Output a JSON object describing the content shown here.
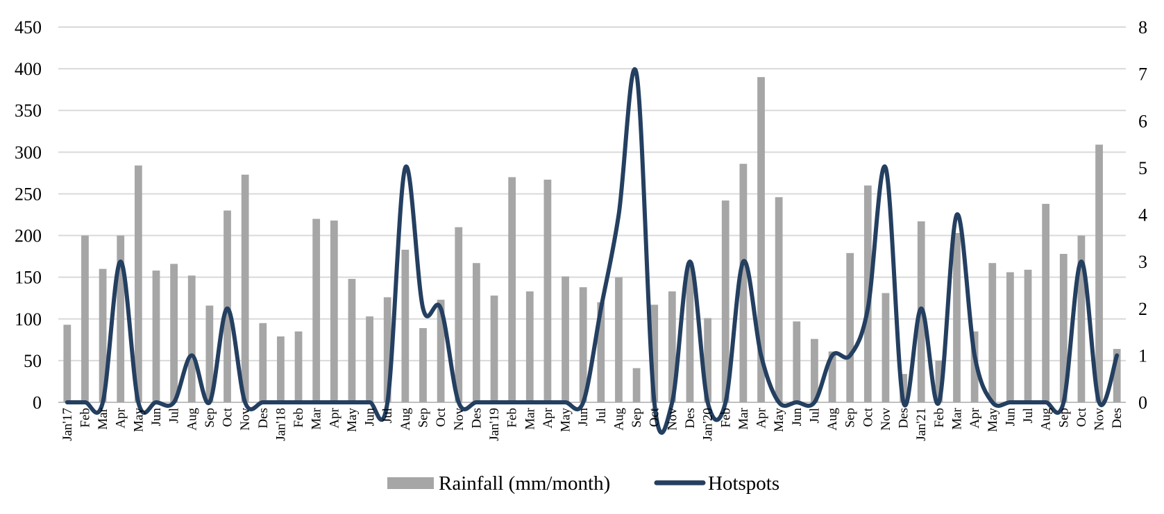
{
  "chart_data": {
    "type": "bar",
    "categories": [
      "Jan'17",
      "Feb",
      "Mar",
      "Apr",
      "May",
      "Jun",
      "Jul",
      "Aug",
      "Sep",
      "Oct",
      "Nov",
      "Des",
      "Jan'18",
      "Feb",
      "Mar",
      "Apr",
      "May",
      "Jun",
      "Jul",
      "Aug",
      "Sep",
      "Oct",
      "Nov",
      "Des",
      "Jan'19",
      "Feb",
      "Mar",
      "Apr",
      "May",
      "Jun",
      "Jul",
      "Aug",
      "Sep",
      "Oct",
      "Nov",
      "Des",
      "Jan'20",
      "Feb",
      "Mar",
      "Apr",
      "May",
      "Jun",
      "Jul",
      "Aug",
      "Sep",
      "Oct",
      "Nov",
      "Des",
      "Jan'21",
      "Feb",
      "Mar",
      "Apr",
      "May",
      "Jun",
      "Jul",
      "Aug",
      "Sep",
      "Oct",
      "Nov",
      "Des"
    ],
    "series": [
      {
        "name": "Rainfall (mm/month)",
        "type": "bar",
        "axis": "left",
        "color": "#a6a6a6",
        "values": [
          93,
          200,
          160,
          200,
          284,
          158,
          166,
          152,
          116,
          230,
          273,
          95,
          79,
          85,
          220,
          218,
          148,
          103,
          126,
          183,
          89,
          123,
          210,
          167,
          128,
          270,
          133,
          267,
          151,
          138,
          120,
          150,
          41,
          117,
          133,
          167,
          101,
          242,
          286,
          390,
          246,
          97,
          76,
          61,
          179,
          260,
          131,
          34,
          217,
          50,
          203,
          85,
          167,
          156,
          159,
          238,
          178,
          200,
          309,
          64
        ]
      },
      {
        "name": "Hotspots",
        "type": "line",
        "axis": "right",
        "color": "#243f60",
        "values": [
          0,
          0,
          0,
          3,
          0,
          0,
          0,
          1,
          0,
          2,
          0,
          0,
          0,
          0,
          0,
          0,
          0,
          0,
          0,
          5,
          2,
          2,
          0,
          0,
          0,
          0,
          0,
          0,
          0,
          0,
          2,
          4,
          7,
          0,
          0,
          3,
          0,
          0,
          3,
          1,
          0,
          0,
          0,
          1,
          1,
          2,
          5,
          0,
          2,
          0,
          4,
          1,
          0,
          0,
          0,
          0,
          0,
          3,
          0,
          1
        ]
      }
    ],
    "ylim": [
      0,
      450
    ],
    "yticks": [
      "0",
      "50",
      "100",
      "150",
      "200",
      "250",
      "300",
      "350",
      "400",
      "450"
    ],
    "y2lim": [
      0,
      8
    ],
    "y2ticks": [
      "0",
      "1",
      "2",
      "3",
      "4",
      "5",
      "6",
      "7",
      "8"
    ],
    "grid": true,
    "legend": "bottom"
  }
}
